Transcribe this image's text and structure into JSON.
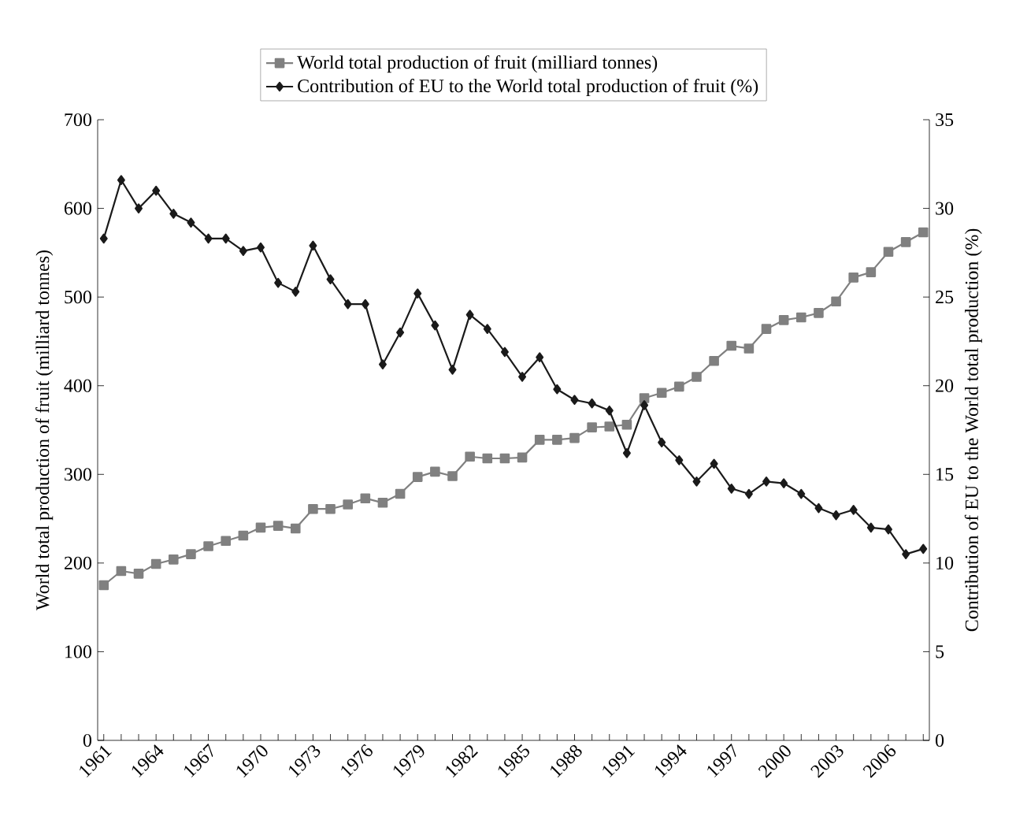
{
  "chart_data": {
    "type": "line",
    "xlabel": null,
    "ylabel": "World total production of fruit (milliard tonnes)",
    "y2label": "Contribution of EU to the World total production  (%)",
    "categories": [
      "1961",
      null,
      null,
      "1964",
      null,
      null,
      "1967",
      null,
      null,
      "1970",
      null,
      null,
      "1973",
      null,
      null,
      "1976",
      null,
      null,
      "1979",
      null,
      null,
      "1982",
      null,
      null,
      "1985",
      null,
      null,
      "1988",
      null,
      null,
      "1991",
      null,
      null,
      "1994",
      null,
      null,
      "1997",
      null,
      null,
      "2000",
      null,
      null,
      "2003",
      null,
      null,
      "2006",
      null,
      null
    ],
    "series": [
      {
        "name": "World total production of fruit (milliard tonnes)",
        "color": "#808080",
        "marker": "square",
        "values": [
          175,
          191,
          188,
          199,
          204,
          210,
          219,
          225,
          231,
          240,
          242,
          239,
          261,
          261,
          266,
          273,
          268,
          278,
          297,
          303,
          298,
          320,
          318,
          318,
          319,
          339,
          339,
          341,
          353,
          354,
          356,
          386,
          392,
          399,
          410,
          428,
          445,
          442,
          464,
          474,
          477,
          482,
          495,
          522,
          528,
          551,
          562,
          573
        ]
      },
      {
        "name": "Contribution of EU to the World total production of fruit (%)",
        "color": "#1a1a1a",
        "marker": "diamond",
        "axis": "y2",
        "values": [
          28.3,
          31.6,
          30.0,
          31.0,
          29.7,
          29.2,
          28.3,
          28.3,
          27.6,
          27.8,
          25.8,
          25.3,
          27.9,
          26.0,
          24.6,
          24.6,
          21.2,
          23.0,
          25.2,
          23.4,
          20.9,
          24.0,
          23.2,
          21.9,
          20.5,
          21.6,
          19.8,
          19.2,
          19.0,
          18.6,
          16.2,
          18.9,
          16.8,
          15.8,
          14.6,
          15.6,
          14.2,
          13.9,
          14.6,
          14.5,
          13.9,
          13.1,
          12.7,
          13.0,
          12.0,
          11.9,
          10.5,
          10.8
        ]
      }
    ],
    "ylim": [
      0,
      700
    ],
    "yticks": [
      0,
      100,
      200,
      300,
      400,
      500,
      600,
      700
    ],
    "y2lim": [
      0,
      35
    ],
    "y2ticks": [
      0,
      5,
      10,
      15,
      20,
      25,
      30,
      35
    ],
    "legend": "top",
    "grid": false
  }
}
